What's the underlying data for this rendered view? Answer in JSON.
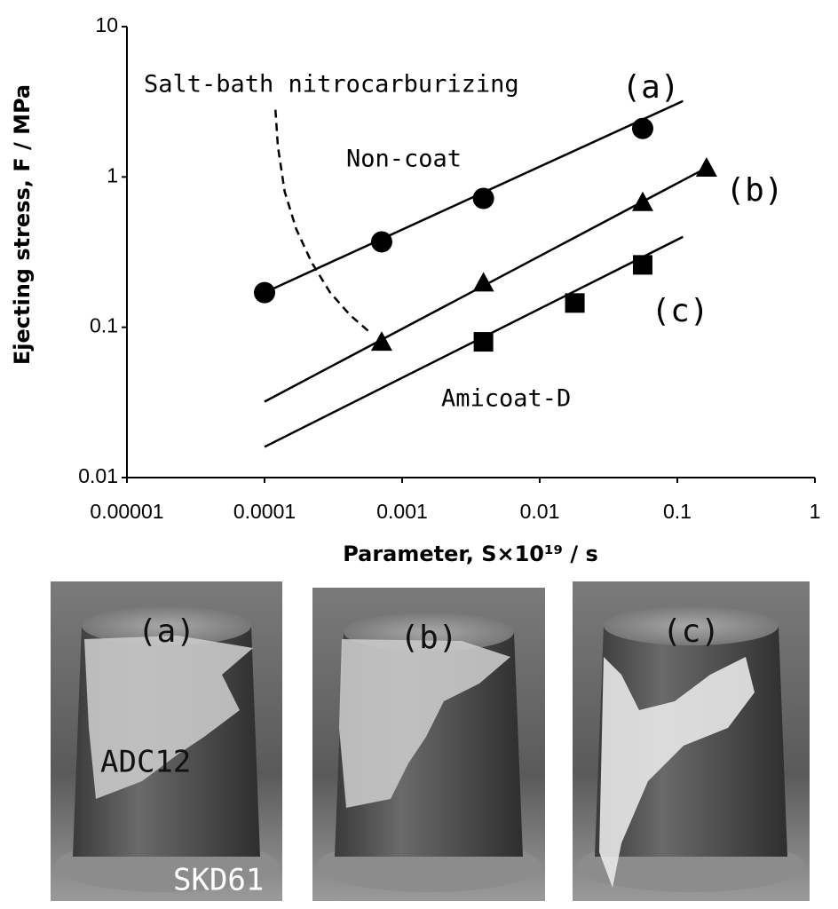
{
  "chart_data": {
    "type": "scatter",
    "x_label": "Parameter, S×10¹⁹ / s",
    "y_label": "Ejecting stress, F / MPa",
    "log_x": true,
    "log_y": true,
    "xlim": [
      1e-05,
      1
    ],
    "ylim": [
      0.01,
      10
    ],
    "xticks": [
      1e-05,
      0.0001,
      0.001,
      0.01,
      0.1,
      1
    ],
    "yticks": [
      0.01,
      0.1,
      1,
      10
    ],
    "annotations": [
      "Salt-bath nitrocarburizing",
      "Non-coat",
      "Amicoat-D"
    ],
    "series": [
      {
        "name": "(a)",
        "marker": "circle",
        "color": "#000000",
        "x": [
          0.0001,
          0.00071,
          0.0039,
          0.056
        ],
        "values": [
          0.17,
          0.37,
          0.72,
          2.1
        ],
        "fit_x": [
          0.0001,
          0.11
        ],
        "fit_values": [
          0.17,
          3.2
        ]
      },
      {
        "name": "(b)",
        "marker": "triangle",
        "color": "#000000",
        "x": [
          0.00071,
          0.0039,
          0.056,
          0.163
        ],
        "values": [
          0.08,
          0.198,
          0.68,
          1.15
        ],
        "fit_x": [
          0.0001,
          0.163
        ],
        "fit_values": [
          0.032,
          1.15
        ]
      },
      {
        "name": "(c)",
        "marker": "square",
        "color": "#000000",
        "x": [
          0.0039,
          0.018,
          0.056
        ],
        "values": [
          0.08,
          0.145,
          0.26
        ],
        "fit_x": [
          0.0001,
          0.11
        ],
        "fit_values": [
          0.016,
          0.4
        ]
      }
    ],
    "dashed_curve": {
      "color": "#000000",
      "x": [
        0.00012,
        0.000125,
        0.00014,
        0.00017,
        0.00022,
        0.0003,
        0.00042,
        0.00058
      ],
      "values": [
        2.8,
        1.6,
        0.8,
        0.45,
        0.27,
        0.17,
        0.12,
        0.093
      ]
    }
  },
  "photos": [
    {
      "label": "(a)",
      "notes": [
        "ADC12",
        "SKD61"
      ]
    },
    {
      "label": "(b)",
      "notes": []
    },
    {
      "label": "(c)",
      "notes": []
    }
  ]
}
